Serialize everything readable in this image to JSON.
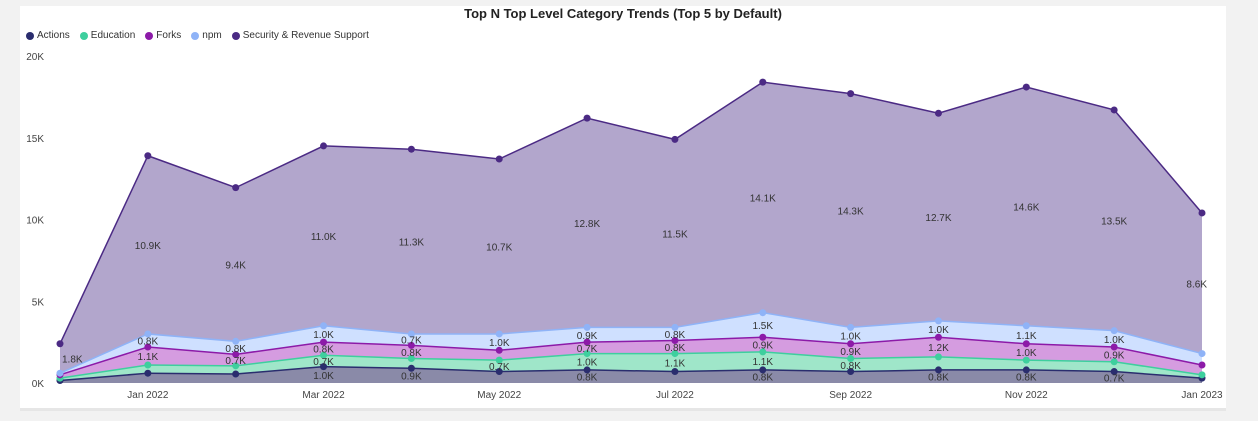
{
  "chart_data": {
    "type": "area",
    "title": "Top N Top Level Category Trends (Top 5 by Default)",
    "xlabel": "",
    "ylabel": "",
    "ylim": [
      0,
      20000
    ],
    "y_ticks": [
      0,
      5000,
      10000,
      15000,
      20000
    ],
    "y_tick_labels": [
      "0K",
      "5K",
      "10K",
      "15K",
      "20K"
    ],
    "x_tick_labels": [
      "Jan 2022",
      "Mar 2022",
      "May 2022",
      "Jul 2022",
      "Sep 2022",
      "Nov 2022",
      "Jan 2023"
    ],
    "x": [
      "2021-12",
      "2022-01",
      "2022-02",
      "2022-03",
      "2022-04",
      "2022-05",
      "2022-06",
      "2022-07",
      "2022-08",
      "2022-09",
      "2022-10",
      "2022-11",
      "2022-12",
      "2023-01"
    ],
    "stacked": true,
    "legend_position": "top-left",
    "series": [
      {
        "name": "Actions",
        "color": "#2a2d6e",
        "values": [
          150,
          600,
          550,
          1000,
          900,
          700,
          800,
          700,
          800,
          700,
          800,
          800,
          700,
          300
        ],
        "labels": [
          "",
          "",
          "",
          "1.0K",
          "0.9K",
          "",
          "0.8K",
          "",
          "0.8K",
          "",
          "0.8K",
          "0.8K",
          "0.7K",
          ""
        ]
      },
      {
        "name": "Education",
        "color": "#3ecf9e",
        "values": [
          150,
          500,
          500,
          700,
          600,
          700,
          1000,
          1100,
          1100,
          800,
          800,
          600,
          600,
          200
        ],
        "labels": [
          "",
          "",
          "",
          "0.7K",
          "",
          "0.7K",
          "1.0K",
          "1.1K",
          "1.1K",
          "0.8K",
          "",
          "",
          "",
          ""
        ]
      },
      {
        "name": "Forks",
        "color": "#8c1aa8",
        "values": [
          200,
          1100,
          700,
          800,
          800,
          600,
          700,
          800,
          900,
          900,
          1200,
          1000,
          900,
          600
        ],
        "labels": [
          "",
          "1.1K",
          "0.7K",
          "0.8K",
          "0.8K",
          "",
          "0.7K",
          "0.8K",
          "0.9K",
          "0.9K",
          "1.2K",
          "1.0K",
          "0.9K",
          ""
        ]
      },
      {
        "name": "npm",
        "color": "#8fb3f7",
        "values": [
          100,
          800,
          800,
          1000,
          700,
          1000,
          900,
          800,
          1500,
          1000,
          1000,
          1100,
          1000,
          700
        ],
        "labels": [
          "",
          "0.8K",
          "0.8K",
          "1.0K",
          "0.7K",
          "1.0K",
          "0.9K",
          "0.8K",
          "1.5K",
          "1.0K",
          "1.0K",
          "1.1K",
          "1.0K",
          ""
        ]
      },
      {
        "name": "Security & Revenue Support",
        "color": "#4b2a84",
        "values": [
          1800,
          10900,
          9400,
          11000,
          11300,
          10700,
          12800,
          11500,
          14100,
          14300,
          12700,
          14600,
          13500,
          8600
        ],
        "labels": [
          "1.8K",
          "10.9K",
          "9.4K",
          "11.0K",
          "11.3K",
          "10.7K",
          "12.8K",
          "11.5K",
          "14.1K",
          "14.3K",
          "12.7K",
          "14.6K",
          "13.5K",
          "8.6K"
        ]
      }
    ],
    "area_fills": [
      "#8a8aa8",
      "#9fe6c9",
      "#d59ce0",
      "#cfe0ff",
      "#b2a6cc"
    ]
  }
}
